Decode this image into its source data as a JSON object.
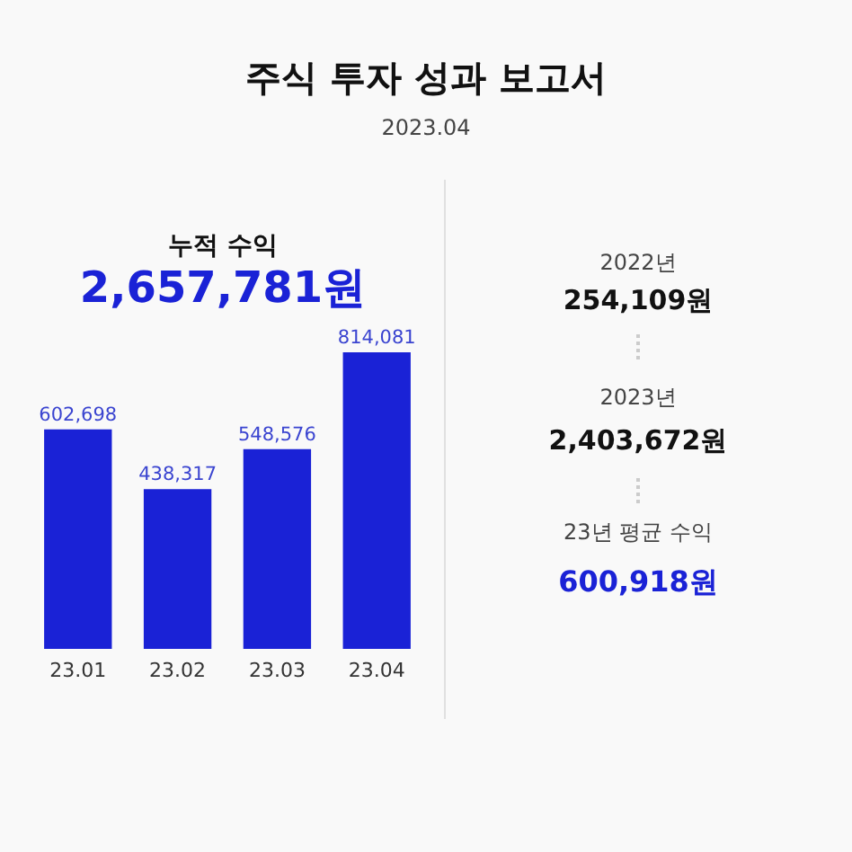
{
  "chart_data": {
    "type": "bar",
    "title": "주식 투자 성과 보고서",
    "subtitle": "2023.04",
    "categories": [
      "23.01",
      "23.02",
      "23.03",
      "23.04"
    ],
    "values": [
      602698,
      438317,
      548576,
      814081
    ],
    "value_labels": [
      "602,698",
      "438,317",
      "548,576",
      "814,081"
    ],
    "color": "#1a22d6",
    "annotations": [
      "누적 수익",
      "2,657,781원",
      "2022년",
      "254,109원",
      "2023년",
      "2,403,672원",
      "23년 평균 수익",
      "600,918원"
    ]
  }
}
